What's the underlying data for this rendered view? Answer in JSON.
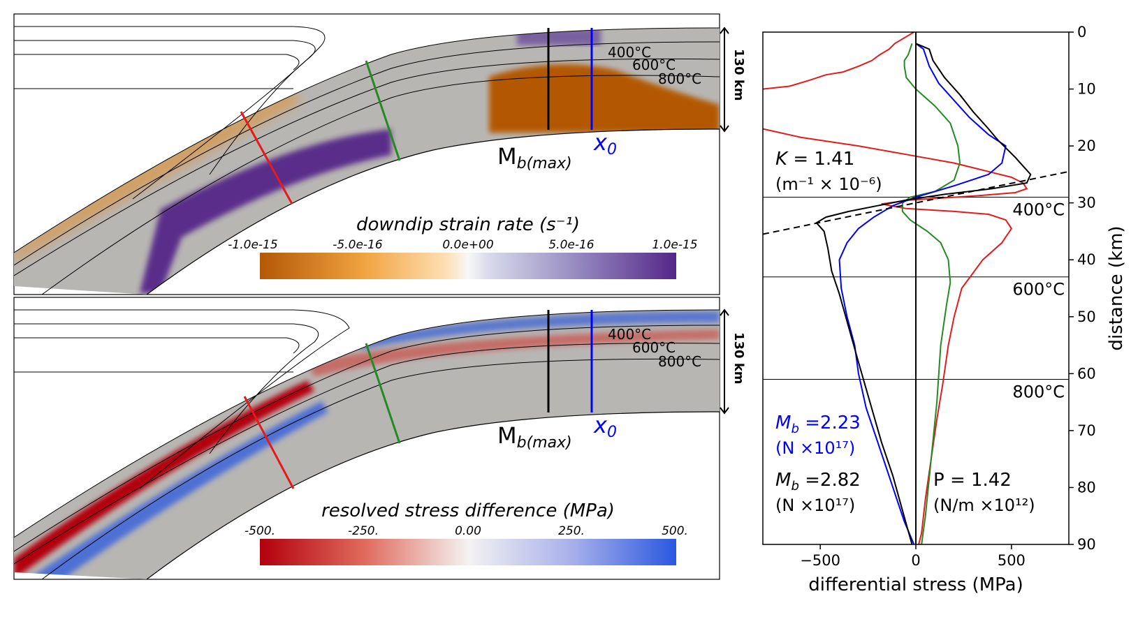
{
  "panels": [
    {
      "colorbar_title": "downdip strain rate (s⁻¹)",
      "ticks": [
        "-1.0e-15",
        "-5.0e-16",
        "0.0e+00",
        "5.0e-16",
        "1.0e-15"
      ],
      "scale_label": "130 km",
      "isotherms": [
        "400°C",
        "600°C",
        "800°C"
      ],
      "mb_label": "M",
      "mb_sub": "b(max)",
      "x0_label": "x",
      "x0_sub": "0"
    },
    {
      "colorbar_title": "resolved stress difference (MPa)",
      "ticks": [
        "-500.",
        "-250.",
        "0.00",
        "250.",
        "500."
      ],
      "scale_label": "130 km",
      "isotherms": [
        "400°C",
        "600°C",
        "800°C"
      ],
      "mb_label": "M",
      "mb_sub": "b(max)",
      "x0_label": "x",
      "x0_sub": "0"
    }
  ],
  "colors": {
    "strain_neg": "#b35806",
    "strain_pos": "#542788",
    "stress_neg": "#b2000c",
    "stress_pos": "#2a58e0",
    "slab_gray": "#b8b6b3"
  },
  "chart_data": {
    "type": "line",
    "xlabel": "differential stress (MPa)",
    "ylabel": "distance (km)",
    "xlim": [
      -800,
      800
    ],
    "ylim": [
      90,
      0
    ],
    "xticks": [
      -500,
      0,
      500
    ],
    "yticks": [
      0,
      10,
      20,
      30,
      40,
      50,
      60,
      70,
      80,
      90
    ],
    "isotherm_depths": [
      {
        "depth": 29,
        "label": "400°C"
      },
      {
        "depth": 43,
        "label": "600°C"
      },
      {
        "depth": 61,
        "label": "800°C"
      }
    ],
    "series": [
      {
        "color": "#e41a1c",
        "points": [
          [
            -10,
            0
          ],
          [
            -60,
            1
          ],
          [
            -110,
            2
          ],
          [
            -140,
            3
          ],
          [
            -190,
            4
          ],
          [
            -230,
            5
          ],
          [
            -300,
            6
          ],
          [
            -380,
            7
          ],
          [
            -470,
            7.5
          ],
          [
            -560,
            8.5
          ],
          [
            -660,
            9.5
          ],
          [
            -800,
            10
          ]
        ]
      },
      {
        "color": "#e41a1c",
        "points": [
          [
            -800,
            17
          ],
          [
            -600,
            18.5
          ],
          [
            -300,
            20
          ],
          [
            -50,
            21.5
          ],
          [
            200,
            23
          ],
          [
            380,
            24.5
          ],
          [
            500,
            25.5
          ],
          [
            560,
            26.5
          ],
          [
            580,
            27.5
          ],
          [
            520,
            28.2
          ],
          [
            300,
            28.8
          ],
          [
            -30,
            29.5
          ],
          [
            -180,
            30.2
          ],
          [
            -50,
            31
          ],
          [
            200,
            31.5
          ],
          [
            380,
            32
          ],
          [
            470,
            33
          ],
          [
            500,
            34.5
          ],
          [
            450,
            37
          ],
          [
            350,
            40
          ],
          [
            240,
            45
          ],
          [
            200,
            50
          ],
          [
            170,
            55
          ],
          [
            140,
            62
          ],
          [
            110,
            68
          ],
          [
            80,
            75
          ],
          [
            50,
            82
          ],
          [
            30,
            88
          ],
          [
            15,
            90
          ]
        ]
      },
      {
        "color": "#228b22",
        "points": [
          [
            -20,
            2
          ],
          [
            -30,
            3
          ],
          [
            -40,
            4
          ],
          [
            -60,
            5
          ],
          [
            -60,
            6
          ],
          [
            -50,
            8
          ],
          [
            0,
            10
          ],
          [
            100,
            13
          ],
          [
            180,
            16
          ],
          [
            220,
            20
          ],
          [
            230,
            23
          ],
          [
            200,
            26
          ],
          [
            100,
            28
          ],
          [
            -30,
            29
          ],
          [
            -70,
            30
          ],
          [
            -70,
            31.5
          ],
          [
            -30,
            33
          ],
          [
            60,
            35
          ],
          [
            130,
            37
          ],
          [
            170,
            40
          ],
          [
            180,
            44
          ],
          [
            160,
            48
          ],
          [
            130,
            55
          ],
          [
            110,
            65
          ],
          [
            80,
            75
          ],
          [
            50,
            85
          ],
          [
            30,
            90
          ]
        ]
      },
      {
        "color": "#0000ff",
        "points": [
          [
            0,
            2
          ],
          [
            40,
            3
          ],
          [
            70,
            6
          ],
          [
            120,
            9
          ],
          [
            200,
            12
          ],
          [
            280,
            15
          ],
          [
            380,
            18
          ],
          [
            470,
            20
          ],
          [
            450,
            23
          ],
          [
            380,
            25
          ],
          [
            200,
            27
          ],
          [
            0,
            29
          ],
          [
            -120,
            30.5
          ],
          [
            -220,
            32.5
          ],
          [
            -300,
            34.5
          ],
          [
            -360,
            37
          ],
          [
            -400,
            40
          ],
          [
            -390,
            45
          ],
          [
            -360,
            50
          ],
          [
            -320,
            55
          ],
          [
            -300,
            60
          ],
          [
            -260,
            66
          ],
          [
            -200,
            72
          ],
          [
            -140,
            78
          ],
          [
            -100,
            82
          ],
          [
            -60,
            86
          ],
          [
            -10,
            90
          ]
        ]
      },
      {
        "color": "#000000",
        "points": [
          [
            0,
            2
          ],
          [
            70,
            3
          ],
          [
            90,
            5
          ],
          [
            150,
            8
          ],
          [
            230,
            11
          ],
          [
            300,
            14
          ],
          [
            380,
            17
          ],
          [
            430,
            19
          ],
          [
            520,
            22
          ],
          [
            600,
            25
          ],
          [
            580,
            26.5
          ],
          [
            400,
            27.5
          ],
          [
            150,
            28.5
          ],
          [
            -50,
            29.5
          ],
          [
            -200,
            30.5
          ],
          [
            -350,
            31.5
          ],
          [
            -470,
            32.5
          ],
          [
            -520,
            33.5
          ],
          [
            -480,
            35
          ],
          [
            -460,
            38
          ],
          [
            -440,
            42
          ],
          [
            -400,
            46
          ],
          [
            -350,
            52
          ],
          [
            -300,
            58
          ],
          [
            -240,
            65
          ],
          [
            -180,
            72
          ],
          [
            -120,
            78
          ],
          [
            -70,
            84
          ],
          [
            -20,
            90
          ]
        ]
      },
      {
        "color": "#000000",
        "dashed": true,
        "points": [
          [
            -800,
            35.5
          ],
          [
            800,
            24.5
          ]
        ]
      }
    ],
    "annotations": {
      "K": {
        "text": "K = 1.41",
        "unit": "(m⁻¹ × 10⁻⁶)"
      },
      "Mb_blue": {
        "text": "M",
        "sub": "b",
        "value": " =2.23",
        "unit": "(N ×10¹⁷)"
      },
      "Mb_black": {
        "text": "M",
        "sub": "b",
        "value": " =2.82",
        "unit": "(N ×10¹⁷)"
      },
      "P": {
        "text": "P = 1.42",
        "unit": "(N/m ×10¹²)"
      }
    }
  }
}
